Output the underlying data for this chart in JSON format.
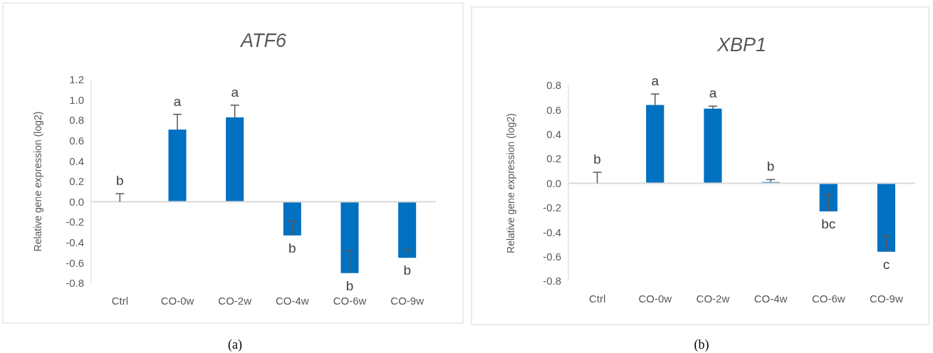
{
  "chart_data": [
    {
      "type": "bar",
      "title": "ATF6",
      "ylabel": "Relative gene expression (log2)",
      "categories": [
        "Ctrl",
        "CO-0w",
        "CO-2w",
        "CO-4w",
        "CO-6w",
        "CO-9w"
      ],
      "values": [
        0.0,
        0.71,
        0.83,
        -0.33,
        -0.7,
        -0.55
      ],
      "errors": [
        [
          0.0,
          0.08
        ],
        [
          0.71,
          0.86
        ],
        [
          0.83,
          0.95
        ],
        [
          -0.33,
          -0.19
        ],
        [
          -0.7,
          -0.48
        ],
        [
          -0.55,
          -0.47
        ]
      ],
      "color": "#0070c0",
      "ylim": [
        -0.8,
        1.2
      ],
      "yticks": [
        {
          "value": -0.8,
          "label": "-0.8"
        },
        {
          "value": -0.6,
          "label": "-0.6"
        },
        {
          "value": -0.4,
          "label": "-0.4"
        },
        {
          "value": -0.2,
          "label": "-0.2"
        },
        {
          "value": 0,
          "label": "0.0"
        },
        {
          "value": 0.2,
          "label": "0.2"
        },
        {
          "value": 0.4,
          "label": "0.4"
        },
        {
          "value": 0.6,
          "label": "0.6"
        },
        {
          "value": 0.8,
          "label": "0.8"
        },
        {
          "value": 1.0,
          "label": "1.0"
        },
        {
          "value": 1.2,
          "label": "1.2"
        }
      ],
      "annotations": [
        "b",
        "a",
        "a",
        "b",
        "b",
        "b",
        "(a)"
      ]
    },
    {
      "type": "bar",
      "title": "XBP1",
      "ylabel": "Relative gene expression (log2)",
      "categories": [
        "Ctrl",
        "CO-0w",
        "CO-2w",
        "CO-4w",
        "CO-6w",
        "CO-9w"
      ],
      "values": [
        0.0,
        0.64,
        0.61,
        0.01,
        -0.23,
        -0.56
      ],
      "errors": [
        [
          0.0,
          0.09
        ],
        [
          0.64,
          0.73
        ],
        [
          0.61,
          0.63
        ],
        [
          0.01,
          0.03
        ],
        [
          -0.23,
          -0.09
        ],
        [
          -0.56,
          -0.43
        ]
      ],
      "color": "#0070c0",
      "ylim": [
        -0.8,
        0.8
      ],
      "yticks": [
        {
          "value": -0.8,
          "label": "-0.8"
        },
        {
          "value": -0.6,
          "label": "-0.6"
        },
        {
          "value": -0.4,
          "label": "-0.4"
        },
        {
          "value": -0.2,
          "label": "-0.2"
        },
        {
          "value": 0,
          "label": "0.0"
        },
        {
          "value": 0.2,
          "label": "0.2"
        },
        {
          "value": 0.4,
          "label": "0.4"
        },
        {
          "value": 0.6,
          "label": "0.6"
        },
        {
          "value": 0.8,
          "label": "0.8"
        }
      ],
      "annotations": [
        "b",
        "a",
        "a",
        "b",
        "bc",
        "c",
        "(b)"
      ]
    }
  ]
}
